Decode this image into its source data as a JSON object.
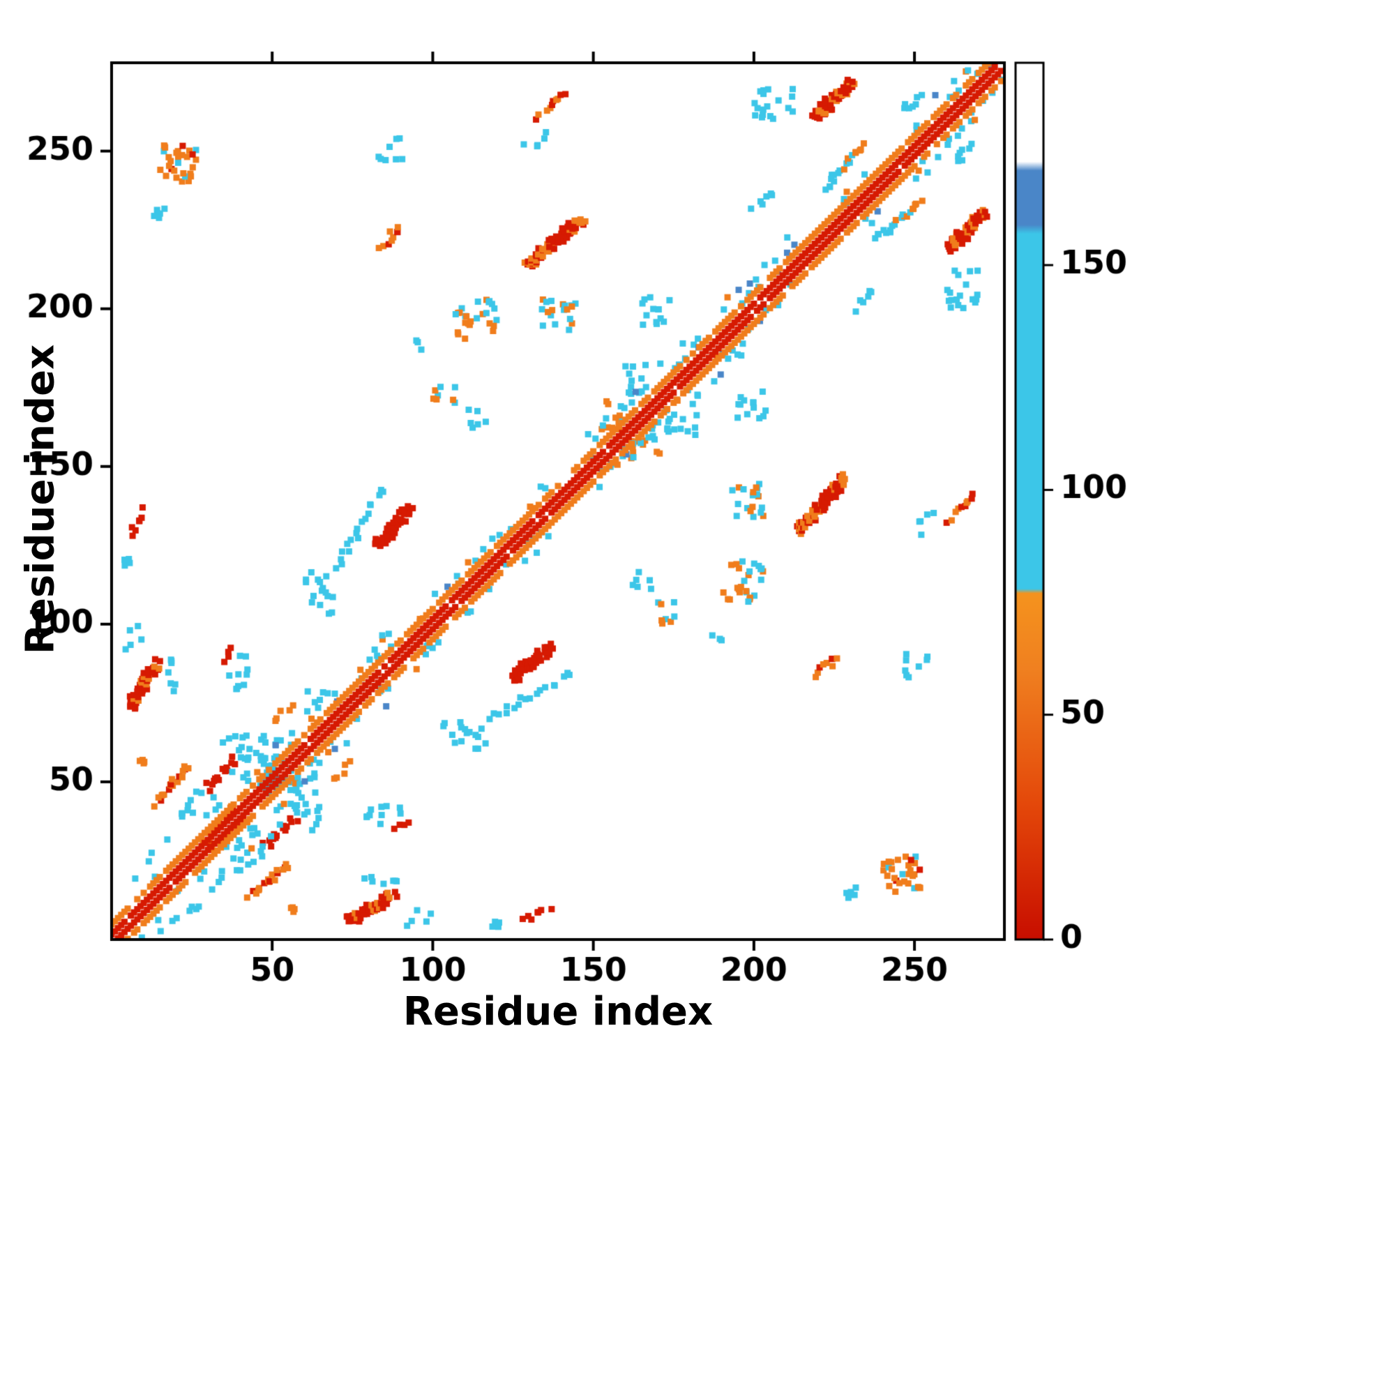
{
  "chart_data": {
    "type": "heatmap",
    "title": "",
    "xlabel": "Residue index",
    "ylabel": "Residue index",
    "xlim": [
      1,
      277
    ],
    "ylim": [
      1,
      277
    ],
    "x_ticks": [
      50,
      100,
      150,
      200,
      250
    ],
    "y_ticks": [
      50,
      100,
      150,
      200,
      250
    ],
    "grid": false,
    "symmetric": true,
    "palette": {
      "red": "#d61a02",
      "orange": "#f07d1c",
      "cyan": "#3cc6e8",
      "blue": "#4a86c8"
    },
    "colorbar": {
      "position": "right",
      "ticks": [
        0,
        50,
        100,
        150
      ],
      "range": [
        0,
        195
      ],
      "stops": [
        {
          "v": 0,
          "color": "#c80e00"
        },
        {
          "v": 30,
          "color": "#e4480a"
        },
        {
          "v": 60,
          "color": "#f08020"
        },
        {
          "v": 77,
          "color": "#f5931e"
        },
        {
          "v": 78,
          "color": "#3cc6e8"
        },
        {
          "v": 157,
          "color": "#3cc6e8"
        },
        {
          "v": 159,
          "color": "#4a86c8"
        },
        {
          "v": 171,
          "color": "#4a86c8"
        },
        {
          "v": 173,
          "color": "#ffffff"
        },
        {
          "v": 195,
          "color": "#ffffff"
        }
      ]
    },
    "diagonal": {
      "red_offset": 1.6,
      "orange_offset": 4.8
    },
    "near_diagonal": [
      {
        "range": [
          5,
          62
        ],
        "off": [
          5,
          18
        ],
        "density": 0.55
      },
      {
        "range": [
          62,
          88
        ],
        "off": [
          4,
          13
        ],
        "density": 0.5
      },
      {
        "range": [
          95,
          138
        ],
        "off": [
          4,
          10
        ],
        "density": 0.45
      },
      {
        "range": [
          148,
          184
        ],
        "off": [
          4,
          12
        ],
        "density": 0.5
      },
      {
        "range": [
          188,
          214
        ],
        "off": [
          4,
          12
        ],
        "density": 0.45
      },
      {
        "range": [
          228,
          241
        ],
        "off": [
          4,
          9
        ],
        "density": 0.4
      },
      {
        "range": [
          250,
          278
        ],
        "off": [
          4,
          12
        ],
        "density": 0.55
      }
    ],
    "clusters": [
      {
        "i": [
          15,
          27
        ],
        "j": [
          240,
          252
        ],
        "shape": "speckle",
        "colors": [
          "orange",
          "red",
          "cyan"
        ],
        "n": 30
      },
      {
        "i": [
          13,
          17
        ],
        "j": [
          227,
          233
        ],
        "shape": "speckle",
        "colors": [
          "cyan"
        ],
        "n": 6
      },
      {
        "i": [
          83,
          91
        ],
        "j": [
          247,
          255
        ],
        "shape": "speckle",
        "colors": [
          "cyan"
        ],
        "n": 8
      },
      {
        "i": [
          133,
          141
        ],
        "j": [
          261,
          268
        ],
        "shape": "diag",
        "colors": [
          "orange",
          "red"
        ],
        "n": 10
      },
      {
        "i": [
          129,
          146
        ],
        "j": [
          214,
          229
        ],
        "shape": "diag",
        "colors": [
          "red",
          "orange"
        ],
        "n": 34,
        "thick": true
      },
      {
        "i": [
          84,
          90
        ],
        "j": [
          220,
          226
        ],
        "shape": "diag",
        "colors": [
          "orange",
          "red"
        ],
        "n": 9
      },
      {
        "i": [
          200,
          213
        ],
        "j": [
          260,
          270
        ],
        "shape": "speckle",
        "colors": [
          "cyan"
        ],
        "n": 18
      },
      {
        "i": [
          218,
          230
        ],
        "j": [
          261,
          272
        ],
        "shape": "diag",
        "colors": [
          "red",
          "orange"
        ],
        "n": 30,
        "thick": true
      },
      {
        "i": [
          245,
          253
        ],
        "j": [
          262,
          269
        ],
        "shape": "speckle",
        "colors": [
          "cyan"
        ],
        "n": 7
      },
      {
        "i": [
          222,
          234
        ],
        "j": [
          238,
          252
        ],
        "shape": "diag",
        "colors": [
          "cyan",
          "orange"
        ],
        "n": 20
      },
      {
        "i": [
          107,
          120
        ],
        "j": [
          190,
          203
        ],
        "shape": "speckle",
        "colors": [
          "cyan",
          "orange"
        ],
        "n": 26
      },
      {
        "i": [
          133,
          146
        ],
        "j": [
          192,
          203
        ],
        "shape": "speckle",
        "colors": [
          "cyan",
          "orange"
        ],
        "n": 20
      },
      {
        "i": [
          100,
          109
        ],
        "j": [
          169,
          177
        ],
        "shape": "speckle",
        "colors": [
          "orange",
          "cyan"
        ],
        "n": 8
      },
      {
        "i": [
          111,
          117
        ],
        "j": [
          162,
          169
        ],
        "shape": "speckle",
        "colors": [
          "cyan"
        ],
        "n": 6
      },
      {
        "i": [
          152,
          160
        ],
        "j": [
          161,
          171
        ],
        "shape": "speckle",
        "colors": [
          "orange",
          "cyan"
        ],
        "n": 12
      },
      {
        "i": [
          160,
          168
        ],
        "j": [
          172,
          183
        ],
        "shape": "speckle",
        "colors": [
          "cyan"
        ],
        "n": 12
      },
      {
        "i": [
          165,
          174
        ],
        "j": [
          192,
          204
        ],
        "shape": "speckle",
        "colors": [
          "cyan"
        ],
        "n": 13
      },
      {
        "i": [
          60,
          69
        ],
        "j": [
          103,
          117
        ],
        "shape": "speckle",
        "colors": [
          "cyan"
        ],
        "n": 16
      },
      {
        "i": [
          70,
          84
        ],
        "j": [
          118,
          143
        ],
        "shape": "diag",
        "colors": [
          "cyan"
        ],
        "n": 18
      },
      {
        "i": [
          82,
          92
        ],
        "j": [
          125,
          137
        ],
        "shape": "diag",
        "colors": [
          "red"
        ],
        "n": 26,
        "thick": true
      },
      {
        "i": [
          5,
          13
        ],
        "j": [
          74,
          88
        ],
        "shape": "diag",
        "colors": [
          "red",
          "orange"
        ],
        "n": 22,
        "thick": true
      },
      {
        "i": [
          14,
          21
        ],
        "j": [
          76,
          92
        ],
        "shape": "speckle",
        "colors": [
          "cyan"
        ],
        "n": 7
      },
      {
        "i": [
          8,
          12
        ],
        "j": [
          53,
          58
        ],
        "shape": "speckle",
        "colors": [
          "orange"
        ],
        "n": 4
      },
      {
        "i": [
          30,
          38
        ],
        "j": [
          48,
          57
        ],
        "shape": "diag",
        "colors": [
          "red"
        ],
        "n": 14
      },
      {
        "i": [
          21,
          28
        ],
        "j": [
          39,
          47
        ],
        "shape": "speckle",
        "colors": [
          "cyan"
        ],
        "n": 7
      },
      {
        "i": [
          41,
          56
        ],
        "j": [
          48,
          64
        ],
        "shape": "speckle",
        "colors": [
          "cyan"
        ],
        "n": 34
      },
      {
        "i": [
          29,
          38
        ],
        "j": [
          31,
          42
        ],
        "shape": "diag",
        "colors": [
          "orange",
          "red"
        ],
        "n": 16
      },
      {
        "i": [
          14,
          24
        ],
        "j": [
          43,
          55
        ],
        "shape": "diag",
        "colors": [
          "orange",
          "red"
        ],
        "n": 18
      },
      {
        "i": [
          6,
          10
        ],
        "j": [
          129,
          136
        ],
        "shape": "diag",
        "colors": [
          "red"
        ],
        "n": 7
      },
      {
        "i": [
          34,
          42
        ],
        "j": [
          57,
          66
        ],
        "shape": "speckle",
        "colors": [
          "cyan"
        ],
        "n": 9
      },
      {
        "i": [
          36,
          44
        ],
        "j": [
          78,
          90
        ],
        "shape": "speckle",
        "colors": [
          "cyan"
        ],
        "n": 10
      },
      {
        "i": [
          35,
          38
        ],
        "j": [
          89,
          92
        ],
        "shape": "diag",
        "colors": [
          "red"
        ],
        "n": 4
      },
      {
        "i": [
          51,
          56
        ],
        "j": [
          70,
          74
        ],
        "shape": "diag",
        "colors": [
          "orange"
        ],
        "n": 5
      },
      {
        "i": [
          4,
          10
        ],
        "j": [
          91,
          100
        ],
        "shape": "speckle",
        "colors": [
          "cyan"
        ],
        "n": 5
      },
      {
        "i": [
          2,
          6
        ],
        "j": [
          116,
          122
        ],
        "shape": "speckle",
        "colors": [
          "cyan"
        ],
        "n": 4
      },
      {
        "i": [
          128,
          136
        ],
        "j": [
          249,
          256
        ],
        "shape": "speckle",
        "colors": [
          "cyan"
        ],
        "n": 5
      },
      {
        "i": [
          199,
          206
        ],
        "j": [
          230,
          238
        ],
        "shape": "speckle",
        "colors": [
          "cyan"
        ],
        "n": 6
      },
      {
        "i": [
          93,
          97
        ],
        "j": [
          185,
          190
        ],
        "shape": "speckle",
        "colors": [
          "cyan"
        ],
        "n": 3
      }
    ]
  }
}
